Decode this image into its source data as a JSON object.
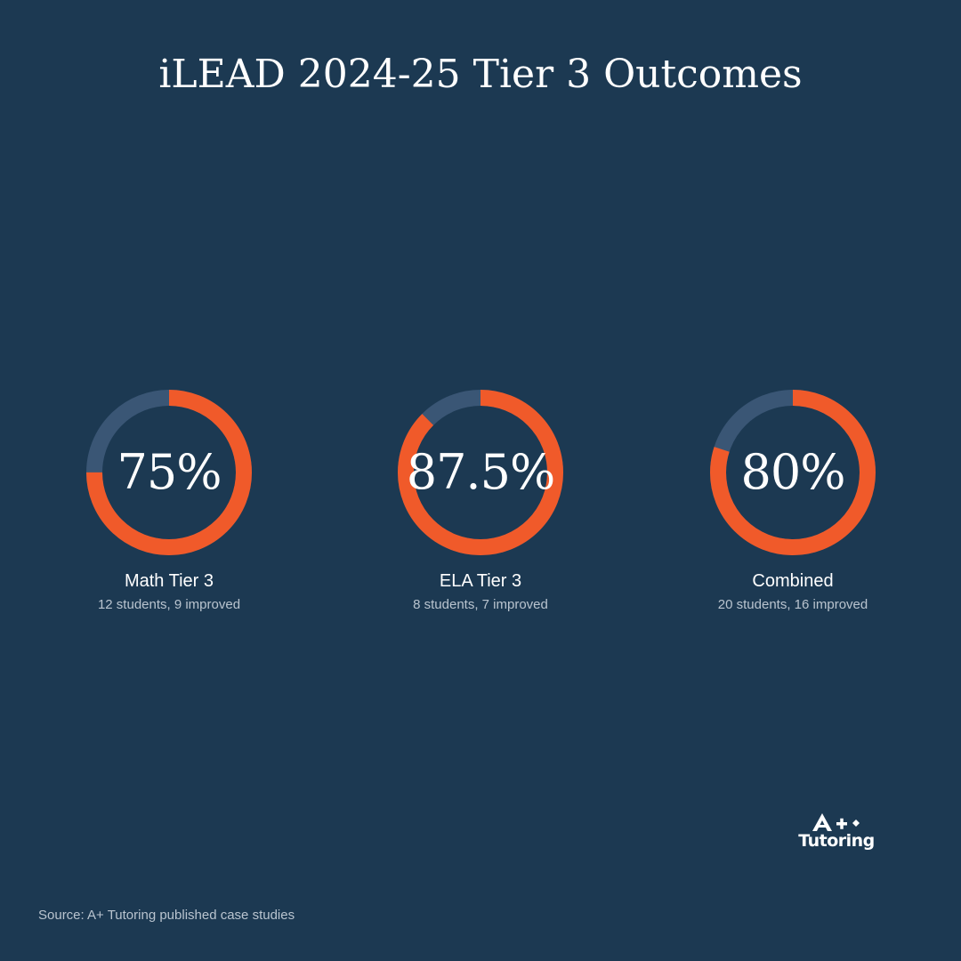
{
  "title": "iLEAD 2024-25 Tier 3 Outcomes",
  "colors": {
    "background": "#1c3952",
    "accent": "#f05a2a",
    "track": "#3a5675"
  },
  "chart_data": [
    {
      "type": "pie",
      "title": "",
      "value_label": "75%",
      "value": 0.75,
      "label": "Math Tier 3",
      "detail": "12 students, 9 improved"
    },
    {
      "type": "pie",
      "title": "",
      "value_label": "87.5%",
      "value": 0.875,
      "label": "ELA Tier 3",
      "detail": "8 students, 7 improved"
    },
    {
      "type": "pie",
      "title": "",
      "value_label": "80%",
      "value": 0.8,
      "label": "Combined",
      "detail": "20 students, 16 improved"
    }
  ],
  "logo": {
    "mark": "A+",
    "word": "Tutoring"
  },
  "source": "Source: A+ Tutoring published case studies"
}
